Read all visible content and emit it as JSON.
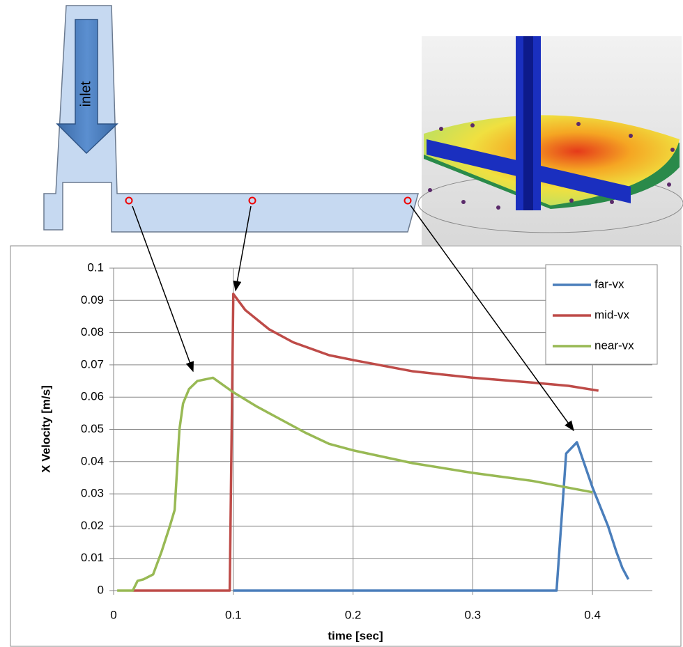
{
  "diagram": {
    "label": "inlet"
  },
  "chart_data": {
    "type": "line",
    "xlabel": "time [sec]",
    "ylabel": "X Velocity [m/s]",
    "xlim": [
      0,
      0.45
    ],
    "ylim": [
      0,
      0.1
    ],
    "xticks": [
      0,
      0.1,
      0.2,
      0.3,
      0.4
    ],
    "yticks": [
      0,
      0.01,
      0.02,
      0.03,
      0.04,
      0.05,
      0.06,
      0.07,
      0.08,
      0.09,
      0.1
    ],
    "grid": true,
    "legend": "upper right",
    "series": [
      {
        "name": "far-vx",
        "color": "#4a7ebb",
        "x": [
          0.1,
          0.37,
          0.378,
          0.387,
          0.4,
          0.413,
          0.42,
          0.425,
          0.43
        ],
        "values": [
          0,
          0,
          0.0425,
          0.046,
          0.032,
          0.02,
          0.012,
          0.007,
          0.0035
        ]
      },
      {
        "name": "mid-vx",
        "color": "#be4b48",
        "x": [
          0.016,
          0.097,
          0.1,
          0.11,
          0.13,
          0.15,
          0.18,
          0.2,
          0.25,
          0.3,
          0.35,
          0.38,
          0.405
        ],
        "values": [
          0,
          0,
          0.092,
          0.087,
          0.081,
          0.077,
          0.073,
          0.0715,
          0.068,
          0.066,
          0.0645,
          0.0635,
          0.062
        ]
      },
      {
        "name": "near-vx",
        "color": "#98b954",
        "x": [
          0.003,
          0.016,
          0.02,
          0.025,
          0.033,
          0.04,
          0.047,
          0.051,
          0.055,
          0.058,
          0.063,
          0.07,
          0.083,
          0.1,
          0.12,
          0.14,
          0.16,
          0.18,
          0.2,
          0.25,
          0.3,
          0.35,
          0.4
        ],
        "values": [
          0,
          0,
          0.003,
          0.0035,
          0.005,
          0.012,
          0.02,
          0.025,
          0.05,
          0.058,
          0.0625,
          0.065,
          0.066,
          0.0615,
          0.057,
          0.053,
          0.049,
          0.0455,
          0.0435,
          0.0395,
          0.0365,
          0.034,
          0.0305
        ]
      }
    ]
  }
}
